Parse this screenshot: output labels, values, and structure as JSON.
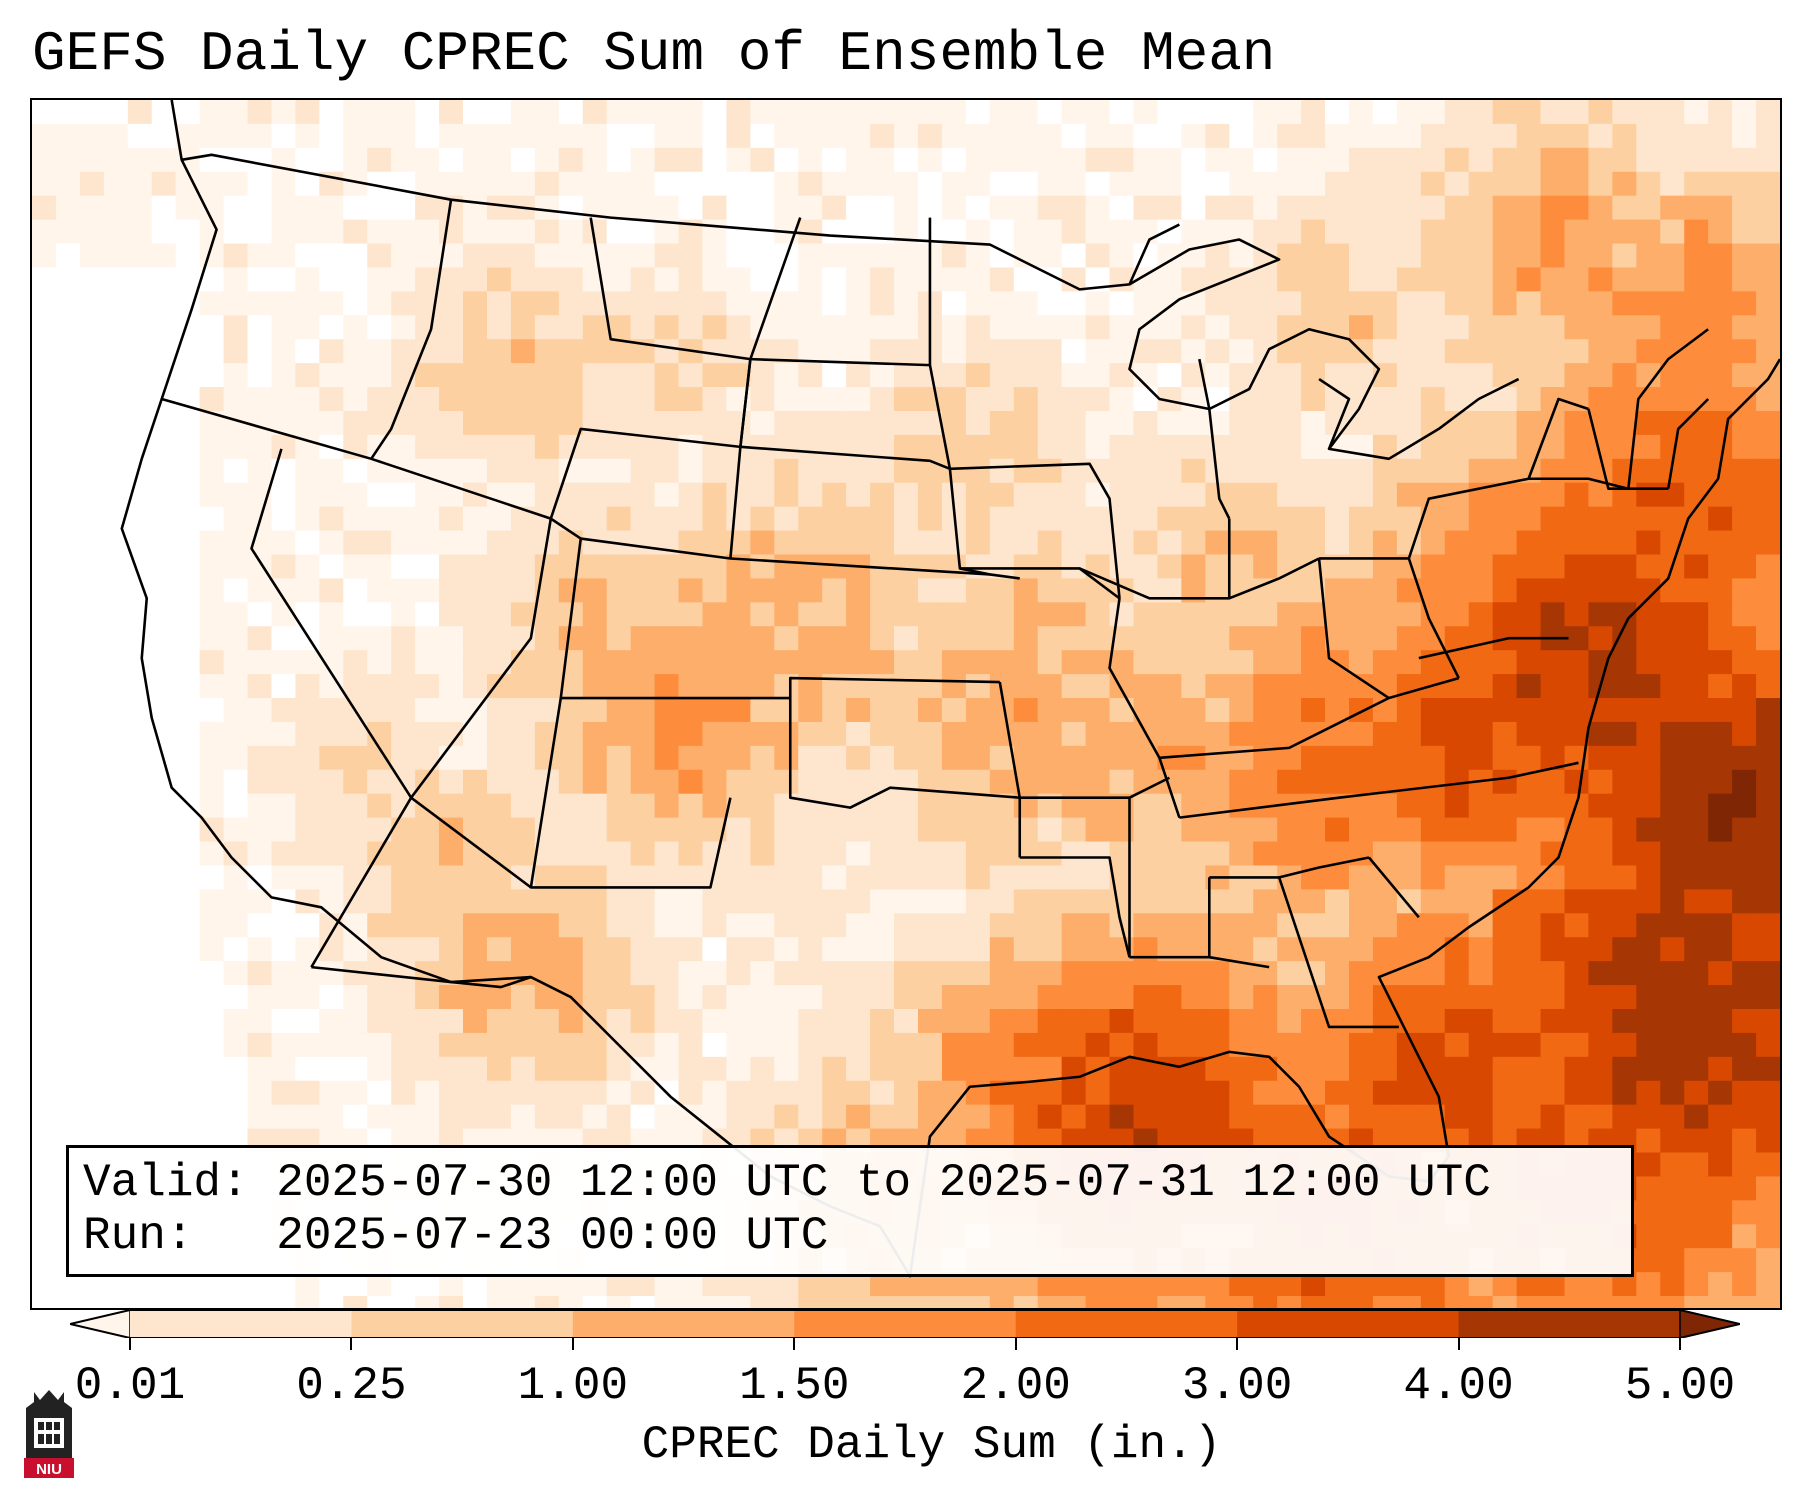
{
  "title": "GEFS Daily CPREC Sum of Ensemble Mean",
  "info": {
    "valid_label": "Valid:",
    "valid_value": "2025-07-30 12:00 UTC to 2025-07-31 12:00 UTC",
    "run_label": "Run:",
    "run_value": "2025-07-23 00:00 UTC"
  },
  "colorbar": {
    "label": "CPREC Daily Sum (in.)",
    "ticks": [
      "0.01",
      "0.25",
      "1.00",
      "1.50",
      "2.00",
      "3.00",
      "4.00",
      "5.00"
    ],
    "colors": [
      "#fff5eb",
      "#fee6ce",
      "#fdd0a2",
      "#fdae6b",
      "#fd8d3c",
      "#f16913",
      "#d94801",
      "#a63603",
      "#7f2704"
    ],
    "extend": "both"
  },
  "map": {
    "region": "Contiguous United States",
    "overlay": "state and country borders"
  },
  "logo": {
    "text": "NIU"
  }
}
